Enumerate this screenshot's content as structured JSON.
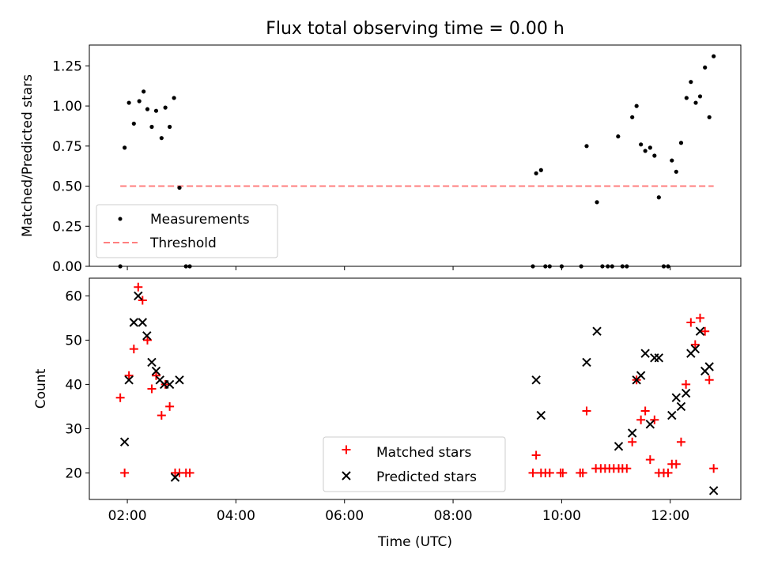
{
  "chart_data": [
    {
      "type": "scatter",
      "title": "Flux total observing time = 0.00 h",
      "xlabel": "",
      "ylabel": "Matched/Predicted stars",
      "xlim": [
        1.3,
        13.3
      ],
      "ylim": [
        0.0,
        1.38
      ],
      "yticks": [
        0.0,
        0.25,
        0.5,
        0.75,
        1.0,
        1.25
      ],
      "ytick_labels": [
        "0.00",
        "0.25",
        "0.50",
        "0.75",
        "1.00",
        "1.25"
      ],
      "xticks": [
        2,
        4,
        6,
        8,
        10,
        12
      ],
      "legend": {
        "position": "lower-left",
        "entries": [
          "Measurements",
          "Threshold"
        ]
      },
      "threshold": {
        "name": "Threshold",
        "y": 0.5,
        "x_range": [
          1.87,
          12.8
        ],
        "color": "#ff7f7f",
        "style": "dashed"
      },
      "series": [
        {
          "name": "Measurements",
          "marker": "dot",
          "color": "#000000",
          "points": [
            [
              1.87,
              0.0
            ],
            [
              1.95,
              0.74
            ],
            [
              2.03,
              1.02
            ],
            [
              2.12,
              0.89
            ],
            [
              2.22,
              1.03
            ],
            [
              2.3,
              1.09
            ],
            [
              2.37,
              0.98
            ],
            [
              2.45,
              0.87
            ],
            [
              2.53,
              0.97
            ],
            [
              2.63,
              0.8
            ],
            [
              2.7,
              0.99
            ],
            [
              2.78,
              0.87
            ],
            [
              2.86,
              1.05
            ],
            [
              2.96,
              0.49
            ],
            [
              3.08,
              0.0
            ],
            [
              3.15,
              0.0
            ],
            [
              9.47,
              0.0
            ],
            [
              9.53,
              0.58
            ],
            [
              9.62,
              0.6
            ],
            [
              9.7,
              0.0
            ],
            [
              9.78,
              0.0
            ],
            [
              10.0,
              0.0
            ],
            [
              10.36,
              0.0
            ],
            [
              10.46,
              0.75
            ],
            [
              10.65,
              0.4
            ],
            [
              10.75,
              0.0
            ],
            [
              10.85,
              0.0
            ],
            [
              10.93,
              0.0
            ],
            [
              11.04,
              0.81
            ],
            [
              11.12,
              0.0
            ],
            [
              11.2,
              0.0
            ],
            [
              11.3,
              0.93
            ],
            [
              11.38,
              1.0
            ],
            [
              11.46,
              0.76
            ],
            [
              11.54,
              0.72
            ],
            [
              11.63,
              0.74
            ],
            [
              11.71,
              0.69
            ],
            [
              11.79,
              0.43
            ],
            [
              11.88,
              0.0
            ],
            [
              11.96,
              0.0
            ],
            [
              12.03,
              0.66
            ],
            [
              12.11,
              0.59
            ],
            [
              12.2,
              0.77
            ],
            [
              12.3,
              1.05
            ],
            [
              12.38,
              1.15
            ],
            [
              12.47,
              1.02
            ],
            [
              12.55,
              1.06
            ],
            [
              12.64,
              1.24
            ],
            [
              12.72,
              0.93
            ],
            [
              12.8,
              1.31
            ]
          ]
        }
      ]
    },
    {
      "type": "scatter",
      "title": "",
      "xlabel": "Time (UTC)",
      "ylabel": "Count",
      "xlim": [
        1.3,
        13.3
      ],
      "ylim": [
        14.0,
        64.0
      ],
      "yticks": [
        20,
        30,
        40,
        50,
        60
      ],
      "ytick_labels": [
        "20",
        "30",
        "40",
        "50",
        "60"
      ],
      "xticks": [
        2,
        4,
        6,
        8,
        10,
        12
      ],
      "xtick_labels": [
        "02:00",
        "04:00",
        "06:00",
        "08:00",
        "10:00",
        "12:00"
      ],
      "legend": {
        "position": "lower-center",
        "entries": [
          "Matched stars",
          "Predicted stars"
        ]
      },
      "series": [
        {
          "name": "Matched stars",
          "marker": "plus",
          "color": "#ff0000",
          "points": [
            [
              1.87,
              37
            ],
            [
              1.95,
              20
            ],
            [
              2.03,
              42
            ],
            [
              2.12,
              48
            ],
            [
              2.2,
              62
            ],
            [
              2.28,
              59
            ],
            [
              2.37,
              50
            ],
            [
              2.45,
              39
            ],
            [
              2.53,
              42
            ],
            [
              2.63,
              33
            ],
            [
              2.7,
              40
            ],
            [
              2.78,
              35
            ],
            [
              2.88,
              20
            ],
            [
              2.96,
              20
            ],
            [
              3.08,
              20
            ],
            [
              3.15,
              20
            ],
            [
              9.47,
              20
            ],
            [
              9.53,
              24
            ],
            [
              9.62,
              20
            ],
            [
              9.7,
              20
            ],
            [
              9.78,
              20
            ],
            [
              9.98,
              20
            ],
            [
              10.02,
              20
            ],
            [
              10.34,
              20
            ],
            [
              10.39,
              20
            ],
            [
              10.46,
              34
            ],
            [
              10.63,
              21
            ],
            [
              10.72,
              21
            ],
            [
              10.8,
              21
            ],
            [
              10.88,
              21
            ],
            [
              10.96,
              21
            ],
            [
              11.05,
              21
            ],
            [
              11.12,
              21
            ],
            [
              11.2,
              21
            ],
            [
              11.3,
              27
            ],
            [
              11.38,
              41
            ],
            [
              11.46,
              32
            ],
            [
              11.54,
              34
            ],
            [
              11.63,
              23
            ],
            [
              11.71,
              32
            ],
            [
              11.79,
              20
            ],
            [
              11.88,
              20
            ],
            [
              11.96,
              20
            ],
            [
              12.03,
              22
            ],
            [
              12.11,
              22
            ],
            [
              12.2,
              27
            ],
            [
              12.29,
              40
            ],
            [
              12.38,
              54
            ],
            [
              12.46,
              49
            ],
            [
              12.55,
              55
            ],
            [
              12.64,
              52
            ],
            [
              12.72,
              41
            ],
            [
              12.8,
              21
            ]
          ]
        },
        {
          "name": "Predicted stars",
          "marker": "x",
          "color": "#000000",
          "points": [
            [
              1.95,
              27
            ],
            [
              2.03,
              41
            ],
            [
              2.12,
              54
            ],
            [
              2.2,
              60
            ],
            [
              2.28,
              54
            ],
            [
              2.36,
              51
            ],
            [
              2.45,
              45
            ],
            [
              2.53,
              43
            ],
            [
              2.6,
              41
            ],
            [
              2.68,
              40
            ],
            [
              2.78,
              40
            ],
            [
              2.88,
              19
            ],
            [
              2.96,
              41
            ],
            [
              9.53,
              41
            ],
            [
              9.62,
              33
            ],
            [
              10.46,
              45
            ],
            [
              10.65,
              52
            ],
            [
              11.05,
              26
            ],
            [
              11.3,
              29
            ],
            [
              11.38,
              41
            ],
            [
              11.46,
              42
            ],
            [
              11.54,
              47
            ],
            [
              11.63,
              31
            ],
            [
              11.71,
              46
            ],
            [
              11.79,
              46
            ],
            [
              12.03,
              33
            ],
            [
              12.11,
              37
            ],
            [
              12.2,
              35
            ],
            [
              12.29,
              38
            ],
            [
              12.38,
              47
            ],
            [
              12.46,
              48
            ],
            [
              12.55,
              52
            ],
            [
              12.64,
              43
            ],
            [
              12.72,
              44
            ],
            [
              12.8,
              16
            ]
          ]
        }
      ]
    }
  ]
}
